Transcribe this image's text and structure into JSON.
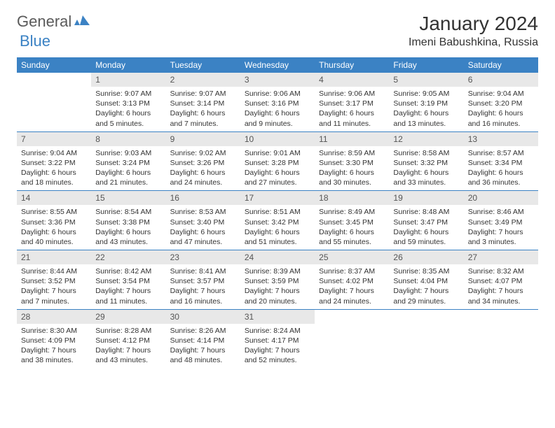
{
  "logo": {
    "part1": "General",
    "part2": "Blue"
  },
  "title": "January 2024",
  "location": "Imeni Babushkina, Russia",
  "dayNames": [
    "Sunday",
    "Monday",
    "Tuesday",
    "Wednesday",
    "Thursday",
    "Friday",
    "Saturday"
  ],
  "header_bg": "#3b82c4",
  "header_fg": "#ffffff",
  "daynum_bg": "#e8e8e8",
  "week_border": "#3b82c4",
  "weeks": [
    [
      {
        "n": "",
        "sr": "",
        "ss": "",
        "dl": ""
      },
      {
        "n": "1",
        "sr": "9:07 AM",
        "ss": "3:13 PM",
        "dl": "6 hours and 5 minutes."
      },
      {
        "n": "2",
        "sr": "9:07 AM",
        "ss": "3:14 PM",
        "dl": "6 hours and 7 minutes."
      },
      {
        "n": "3",
        "sr": "9:06 AM",
        "ss": "3:16 PM",
        "dl": "6 hours and 9 minutes."
      },
      {
        "n": "4",
        "sr": "9:06 AM",
        "ss": "3:17 PM",
        "dl": "6 hours and 11 minutes."
      },
      {
        "n": "5",
        "sr": "9:05 AM",
        "ss": "3:19 PM",
        "dl": "6 hours and 13 minutes."
      },
      {
        "n": "6",
        "sr": "9:04 AM",
        "ss": "3:20 PM",
        "dl": "6 hours and 16 minutes."
      }
    ],
    [
      {
        "n": "7",
        "sr": "9:04 AM",
        "ss": "3:22 PM",
        "dl": "6 hours and 18 minutes."
      },
      {
        "n": "8",
        "sr": "9:03 AM",
        "ss": "3:24 PM",
        "dl": "6 hours and 21 minutes."
      },
      {
        "n": "9",
        "sr": "9:02 AM",
        "ss": "3:26 PM",
        "dl": "6 hours and 24 minutes."
      },
      {
        "n": "10",
        "sr": "9:01 AM",
        "ss": "3:28 PM",
        "dl": "6 hours and 27 minutes."
      },
      {
        "n": "11",
        "sr": "8:59 AM",
        "ss": "3:30 PM",
        "dl": "6 hours and 30 minutes."
      },
      {
        "n": "12",
        "sr": "8:58 AM",
        "ss": "3:32 PM",
        "dl": "6 hours and 33 minutes."
      },
      {
        "n": "13",
        "sr": "8:57 AM",
        "ss": "3:34 PM",
        "dl": "6 hours and 36 minutes."
      }
    ],
    [
      {
        "n": "14",
        "sr": "8:55 AM",
        "ss": "3:36 PM",
        "dl": "6 hours and 40 minutes."
      },
      {
        "n": "15",
        "sr": "8:54 AM",
        "ss": "3:38 PM",
        "dl": "6 hours and 43 minutes."
      },
      {
        "n": "16",
        "sr": "8:53 AM",
        "ss": "3:40 PM",
        "dl": "6 hours and 47 minutes."
      },
      {
        "n": "17",
        "sr": "8:51 AM",
        "ss": "3:42 PM",
        "dl": "6 hours and 51 minutes."
      },
      {
        "n": "18",
        "sr": "8:49 AM",
        "ss": "3:45 PM",
        "dl": "6 hours and 55 minutes."
      },
      {
        "n": "19",
        "sr": "8:48 AM",
        "ss": "3:47 PM",
        "dl": "6 hours and 59 minutes."
      },
      {
        "n": "20",
        "sr": "8:46 AM",
        "ss": "3:49 PM",
        "dl": "7 hours and 3 minutes."
      }
    ],
    [
      {
        "n": "21",
        "sr": "8:44 AM",
        "ss": "3:52 PM",
        "dl": "7 hours and 7 minutes."
      },
      {
        "n": "22",
        "sr": "8:42 AM",
        "ss": "3:54 PM",
        "dl": "7 hours and 11 minutes."
      },
      {
        "n": "23",
        "sr": "8:41 AM",
        "ss": "3:57 PM",
        "dl": "7 hours and 16 minutes."
      },
      {
        "n": "24",
        "sr": "8:39 AM",
        "ss": "3:59 PM",
        "dl": "7 hours and 20 minutes."
      },
      {
        "n": "25",
        "sr": "8:37 AM",
        "ss": "4:02 PM",
        "dl": "7 hours and 24 minutes."
      },
      {
        "n": "26",
        "sr": "8:35 AM",
        "ss": "4:04 PM",
        "dl": "7 hours and 29 minutes."
      },
      {
        "n": "27",
        "sr": "8:32 AM",
        "ss": "4:07 PM",
        "dl": "7 hours and 34 minutes."
      }
    ],
    [
      {
        "n": "28",
        "sr": "8:30 AM",
        "ss": "4:09 PM",
        "dl": "7 hours and 38 minutes."
      },
      {
        "n": "29",
        "sr": "8:28 AM",
        "ss": "4:12 PM",
        "dl": "7 hours and 43 minutes."
      },
      {
        "n": "30",
        "sr": "8:26 AM",
        "ss": "4:14 PM",
        "dl": "7 hours and 48 minutes."
      },
      {
        "n": "31",
        "sr": "8:24 AM",
        "ss": "4:17 PM",
        "dl": "7 hours and 52 minutes."
      },
      {
        "n": "",
        "sr": "",
        "ss": "",
        "dl": ""
      },
      {
        "n": "",
        "sr": "",
        "ss": "",
        "dl": ""
      },
      {
        "n": "",
        "sr": "",
        "ss": "",
        "dl": ""
      }
    ]
  ]
}
